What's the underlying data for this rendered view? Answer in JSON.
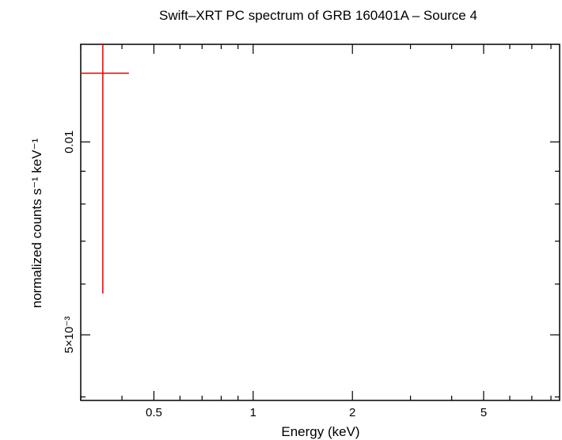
{
  "chart_data": {
    "type": "scatter",
    "title": "Swift–XRT PC spectrum of GRB 160401A – Source 4",
    "xlabel": "Energy (keV)",
    "ylabel": "normalized counts s⁻¹ keV⁻¹",
    "x_scale": "log",
    "y_scale": "log",
    "xlim": [
      0.3,
      8.5
    ],
    "ylim": [
      0.00395,
      0.0142
    ],
    "x_major_ticks": [
      {
        "value": 0.5,
        "label": "0.5"
      },
      {
        "value": 1,
        "label": "1"
      },
      {
        "value": 2,
        "label": "2"
      },
      {
        "value": 5,
        "label": "5"
      }
    ],
    "x_minor_ticks": [
      0.3,
      0.4,
      0.6,
      0.7,
      0.8,
      0.9,
      3,
      4,
      6,
      7,
      8
    ],
    "y_major_ticks": [
      {
        "value": 0.01,
        "label": "0.01"
      },
      {
        "value": 0.005,
        "label": "5×10⁻³"
      }
    ],
    "y_minor_ticks": [
      0.004,
      0.006,
      0.007,
      0.008,
      0.009
    ],
    "grid": false,
    "series": [
      {
        "color": "#e00000",
        "points": [
          {
            "x": 0.35,
            "xlo": 0.3,
            "xhi": 0.42,
            "y": 0.0128,
            "ylo": 0.0058,
            "yhi": 0.0142
          }
        ]
      }
    ]
  }
}
